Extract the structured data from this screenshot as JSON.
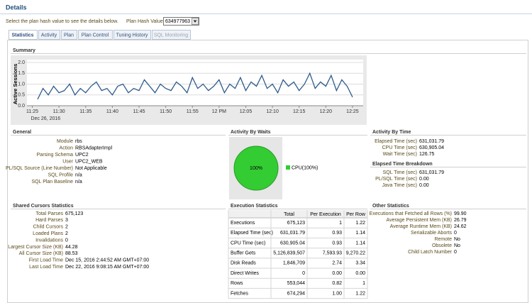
{
  "header": {
    "title": "Details",
    "instruction": "Select the plan hash value to see the details below.",
    "plan_hash_label": "Plan Hash Value",
    "plan_hash_value": "634977963"
  },
  "tabs": [
    "Statistics",
    "Activity",
    "Plan",
    "Plan Control",
    "Tuning History",
    "SQL Monitoring"
  ],
  "chart_data": [
    {
      "type": "line",
      "title": "Summary",
      "ylabel": "Active Sessions",
      "date_label": "Dec 26, 2016",
      "color": "#2f5b8c",
      "grid": true,
      "x": [
        686,
        687,
        688,
        689,
        690,
        691,
        692,
        693,
        694,
        695,
        696,
        697,
        698,
        699,
        700,
        701,
        702,
        703,
        704,
        705,
        706,
        707,
        708,
        709,
        710,
        711,
        712,
        713,
        714,
        715,
        716,
        717,
        718,
        719,
        720,
        721,
        722,
        723,
        724,
        725,
        726,
        727,
        728,
        729,
        730,
        731,
        732,
        733,
        734,
        735,
        736,
        737,
        738,
        739,
        740,
        741,
        742,
        743,
        744,
        745
      ],
      "values": [
        0.3,
        0.8,
        0.5,
        0.9,
        0.6,
        0.7,
        1.0,
        0.5,
        0.8,
        0.6,
        0.9,
        1.1,
        0.7,
        0.8,
        0.5,
        0.9,
        1.0,
        0.6,
        0.8,
        0.7,
        1.2,
        0.9,
        0.6,
        1.0,
        0.8,
        0.7,
        1.1,
        0.9,
        0.6,
        1.3,
        0.8,
        1.0,
        0.7,
        0.9,
        1.2,
        0.6,
        1.0,
        0.8,
        1.3,
        0.7,
        1.1,
        0.9,
        1.4,
        0.8,
        1.0,
        0.6,
        1.2,
        0.9,
        1.1,
        0.7,
        1.0,
        1.5,
        0.8,
        1.1,
        0.9,
        1.4,
        0.7,
        1.2,
        0.9,
        0.4
      ],
      "xlim": [
        684,
        747
      ],
      "xticks": [
        {
          "value": 685,
          "label": "11:25"
        },
        {
          "value": 690,
          "label": "11:30"
        },
        {
          "value": 695,
          "label": "11:35"
        },
        {
          "value": 700,
          "label": "11:40"
        },
        {
          "value": 705,
          "label": "11:45"
        },
        {
          "value": 710,
          "label": "11:50"
        },
        {
          "value": 715,
          "label": "11:55"
        },
        {
          "value": 720,
          "label": "12 PM"
        },
        {
          "value": 725,
          "label": "12:05"
        },
        {
          "value": 730,
          "label": "12:10"
        },
        {
          "value": 735,
          "label": "12:15"
        },
        {
          "value": 740,
          "label": "12:20"
        },
        {
          "value": 745,
          "label": "12:25"
        }
      ],
      "ylim": [
        0,
        2
      ],
      "yticks": [
        {
          "value": 0,
          "label": "0.0"
        },
        {
          "value": 0.5,
          "label": "0.5"
        },
        {
          "value": 1,
          "label": "1.0"
        },
        {
          "value": 1.5,
          "label": "1.5"
        },
        {
          "value": 2,
          "label": "2.0"
        }
      ]
    },
    {
      "type": "pie",
      "title": "Activity By Waits",
      "categories": [
        "CPU(100%)"
      ],
      "values": [
        100
      ],
      "value_labels": [
        "100%"
      ],
      "colors": [
        "#33cc33"
      ]
    }
  ],
  "general": {
    "title": "General",
    "rows": [
      [
        "Module",
        "rbs"
      ],
      [
        "Action",
        "RBSAdapterImpl"
      ],
      [
        "Parsing Schema",
        "UPC2"
      ],
      [
        "User",
        "UPC2_WEB"
      ],
      [
        "PL/SQL Source (Line Number)",
        "Not Applicable"
      ],
      [
        "SQL Profile",
        "n/a"
      ],
      [
        "SQL Plan Baseline",
        "n/a"
      ]
    ]
  },
  "activity_by_time": {
    "title": "Activity By Time",
    "rows": [
      [
        "Elapsed Time (sec)",
        "631,031.79"
      ],
      [
        "CPU Time (sec)",
        "630,905.04"
      ],
      [
        "Wait Time (sec)",
        "126.75"
      ]
    ],
    "breakdown_title": "Elapsed Time Breakdown",
    "breakdown_rows": [
      [
        "SQL Time (sec)",
        "631,031.79"
      ],
      [
        "PL/SQL Time (sec)",
        "0.00"
      ],
      [
        "Java Time (sec)",
        "0.00"
      ]
    ]
  },
  "shared_cursors": {
    "title": "Shared Cursors Statistics",
    "rows": [
      [
        "Total Parses",
        "675,123"
      ],
      [
        "Hard Parses",
        "3"
      ],
      [
        "Child Cursors",
        "2"
      ],
      [
        "Loaded Plans",
        "2"
      ],
      [
        "Invalidations",
        "0"
      ],
      [
        "Largest Cursor Size (KB)",
        "44.28"
      ],
      [
        "All Cursor Size (KB)",
        "88.53"
      ],
      [
        "First Load Time",
        "Dec 15, 2016 2:44:52 AM GMT+07:00"
      ],
      [
        "Last Load Time",
        "Dec 22, 2016 9:08:15 AM GMT+07:00"
      ]
    ]
  },
  "execution_statistics": {
    "title": "Execution Statistics",
    "columns": [
      "Total",
      "Per Execution",
      "Per Row"
    ],
    "rows": [
      [
        "Executions",
        "675,123",
        "1",
        "1.22"
      ],
      [
        "Elapsed Time (sec)",
        "631,031.79",
        "0.93",
        "1.14"
      ],
      [
        "CPU Time (sec)",
        "630,905.04",
        "0.93",
        "1.14"
      ],
      [
        "Buffer Gets",
        "5,126,839,507",
        "7,593.93",
        "9,270.22"
      ],
      [
        "Disk Reads",
        "1,846,709",
        "2.74",
        "3.34"
      ],
      [
        "Direct Writes",
        "0",
        "0.00",
        "0.00"
      ],
      [
        "Rows",
        "553,044",
        "0.82",
        "1"
      ],
      [
        "Fetches",
        "674,294",
        "1.00",
        "1.22"
      ]
    ]
  },
  "other_statistics": {
    "title": "Other Statistics",
    "rows": [
      [
        "Executions that Fetched all Rows (%)",
        "99.90"
      ],
      [
        "Average Persistent Mem (KB)",
        "26.79"
      ],
      [
        "Average Runtime Mem (KB)",
        "24.62"
      ],
      [
        "Serializable Aborts",
        "0"
      ],
      [
        "Remote",
        "No"
      ],
      [
        "Obsolete",
        "No"
      ],
      [
        "Child Latch Number",
        "0"
      ]
    ]
  }
}
